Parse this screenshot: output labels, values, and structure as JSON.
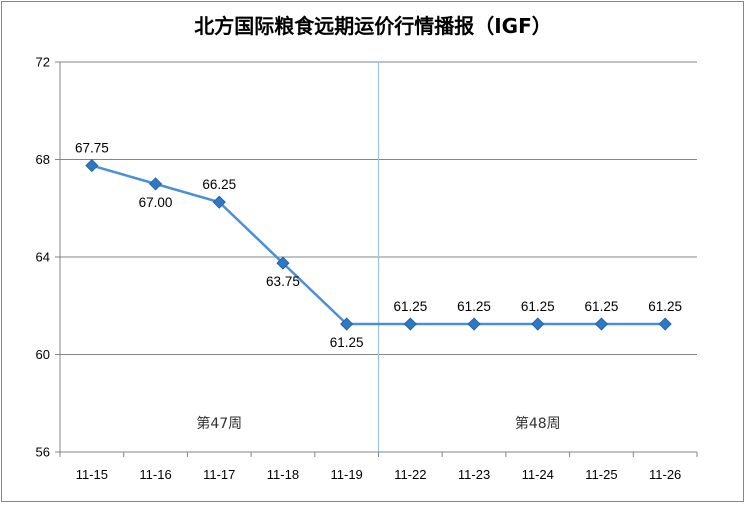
{
  "chart_data": {
    "type": "line",
    "title": "北方国际粮食远期运价行情播报（IGF）",
    "categories": [
      "11-15",
      "11-16",
      "11-17",
      "11-18",
      "11-19",
      "11-22",
      "11-23",
      "11-24",
      "11-25",
      "11-26"
    ],
    "series": [
      {
        "values": [
          67.75,
          67.0,
          66.25,
          63.75,
          61.25,
          61.25,
          61.25,
          61.25,
          61.25,
          61.25
        ],
        "data_labels": [
          "67.75",
          "67.00",
          "66.25",
          "63.75",
          "61.25",
          "61.25",
          "61.25",
          "61.25",
          "61.25",
          "61.25"
        ],
        "color": "#4A90D9",
        "marker_color": "#2F78C5"
      }
    ],
    "ylim": [
      56,
      72
    ],
    "yticks": [
      "72",
      "68",
      "64",
      "60",
      "56"
    ],
    "xlabel": "",
    "ylabel": "",
    "grid": true,
    "annotations": [
      {
        "text": "第47周",
        "span": [
          0,
          4
        ]
      },
      {
        "text": "第48周",
        "span": [
          5,
          9
        ]
      }
    ],
    "divider_after_index": 4,
    "divider_color": "#9DC3E6"
  }
}
